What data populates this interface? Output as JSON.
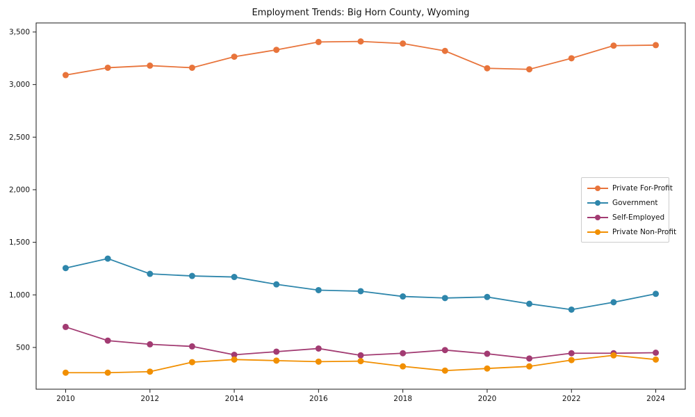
{
  "chart_data": {
    "type": "line",
    "title": "Employment Trends: Big Horn County, Wyoming",
    "xlabel": "",
    "ylabel": "",
    "grid": false,
    "legend_position": "center-right",
    "xlim": [
      2009.3,
      2024.7
    ],
    "ylim": [
      103,
      3586
    ],
    "x": [
      2010,
      2011,
      2012,
      2013,
      2014,
      2015,
      2016,
      2017,
      2018,
      2019,
      2020,
      2021,
      2022,
      2023,
      2024
    ],
    "x_ticks": [
      2010,
      2012,
      2014,
      2016,
      2018,
      2020,
      2022,
      2024
    ],
    "x_tick_labels": [
      "2010",
      "2012",
      "2014",
      "2016",
      "2018",
      "2020",
      "2022",
      "2024"
    ],
    "y_ticks": [
      500,
      1000,
      1500,
      2000,
      2500,
      3000,
      3500
    ],
    "y_tick_labels": [
      "500",
      "1,000",
      "1,500",
      "2,000",
      "2,500",
      "3,000",
      "3,500"
    ],
    "series": [
      {
        "name": "Private For-Profit",
        "color": "#e8743b",
        "values": [
          3090,
          3160,
          3180,
          3160,
          3265,
          3330,
          3405,
          3410,
          3390,
          3320,
          3155,
          3145,
          3250,
          3370,
          3375
        ]
      },
      {
        "name": "Government",
        "color": "#2e86ab",
        "values": [
          1255,
          1345,
          1200,
          1180,
          1170,
          1100,
          1045,
          1035,
          985,
          970,
          980,
          915,
          860,
          930,
          1010
        ]
      },
      {
        "name": "Self-Employed",
        "color": "#a23b72",
        "values": [
          695,
          565,
          530,
          510,
          430,
          460,
          490,
          425,
          445,
          475,
          440,
          395,
          445,
          445,
          450
        ]
      },
      {
        "name": "Private Non-Profit",
        "color": "#f18f01",
        "values": [
          260,
          260,
          270,
          360,
          385,
          375,
          365,
          370,
          320,
          280,
          300,
          320,
          380,
          425,
          385
        ]
      }
    ]
  }
}
